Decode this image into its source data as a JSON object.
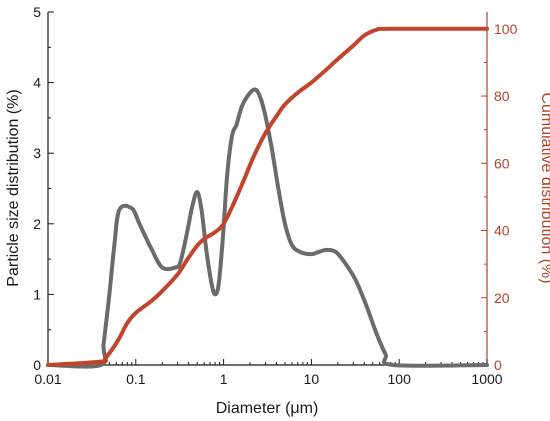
{
  "chart_data": {
    "type": "line",
    "xlabel": "Diameter (μm)",
    "ylabel_left": "Particle size distribution (%)",
    "ylabel_right": "Cumulative distribution (%)",
    "x_scale": "log",
    "xlim": [
      0.01,
      1000
    ],
    "ylim_left": [
      0,
      5
    ],
    "ylim_right": [
      0,
      105
    ],
    "x_ticks": [
      {
        "value": 0.01,
        "label": "0.01"
      },
      {
        "value": 0.1,
        "label": "0.1"
      },
      {
        "value": 1,
        "label": "1"
      },
      {
        "value": 10,
        "label": "10"
      },
      {
        "value": 100,
        "label": "100"
      },
      {
        "value": 1000,
        "label": "1000"
      }
    ],
    "y_ticks_left": [
      {
        "value": 0,
        "label": "0"
      },
      {
        "value": 1,
        "label": "1"
      },
      {
        "value": 2,
        "label": "2"
      },
      {
        "value": 3,
        "label": "3"
      },
      {
        "value": 4,
        "label": "4"
      },
      {
        "value": 5,
        "label": "5"
      }
    ],
    "y_ticks_right": [
      {
        "value": 0,
        "label": "0"
      },
      {
        "value": 20,
        "label": "20"
      },
      {
        "value": 40,
        "label": "40"
      },
      {
        "value": 60,
        "label": "60"
      },
      {
        "value": 80,
        "label": "80"
      },
      {
        "value": 100,
        "label": "100"
      }
    ],
    "grid": false,
    "colors": {
      "left_axis": "#1a1a1a",
      "right_axis": "#b2442a"
    },
    "series": [
      {
        "axis": "left",
        "color": "#6b6b6b",
        "points": [
          [
            0.01,
            0
          ],
          [
            0.04,
            0
          ],
          [
            0.043,
            0.3
          ],
          [
            0.05,
            1.0
          ],
          [
            0.057,
            1.7
          ],
          [
            0.065,
            2.2
          ],
          [
            0.09,
            2.22
          ],
          [
            0.11,
            2.0
          ],
          [
            0.15,
            1.65
          ],
          [
            0.2,
            1.38
          ],
          [
            0.28,
            1.38
          ],
          [
            0.32,
            1.45
          ],
          [
            0.38,
            1.85
          ],
          [
            0.44,
            2.25
          ],
          [
            0.5,
            2.45
          ],
          [
            0.56,
            2.2
          ],
          [
            0.64,
            1.6
          ],
          [
            0.73,
            1.15
          ],
          [
            0.8,
            1.0
          ],
          [
            0.88,
            1.15
          ],
          [
            0.98,
            1.8
          ],
          [
            1.1,
            2.7
          ],
          [
            1.25,
            3.25
          ],
          [
            1.4,
            3.4
          ],
          [
            1.6,
            3.65
          ],
          [
            1.85,
            3.8
          ],
          [
            2.2,
            3.9
          ],
          [
            2.5,
            3.85
          ],
          [
            2.9,
            3.6
          ],
          [
            3.5,
            3.1
          ],
          [
            4.2,
            2.5
          ],
          [
            5.0,
            2.0
          ],
          [
            6.0,
            1.7
          ],
          [
            7.5,
            1.6
          ],
          [
            10,
            1.57
          ],
          [
            12,
            1.6
          ],
          [
            15,
            1.63
          ],
          [
            19,
            1.6
          ],
          [
            24,
            1.45
          ],
          [
            32,
            1.2
          ],
          [
            42,
            0.85
          ],
          [
            55,
            0.45
          ],
          [
            70,
            0.15
          ],
          [
            85,
            0
          ],
          [
            1000,
            0
          ]
        ]
      },
      {
        "axis": "right",
        "color": "#c0452c",
        "points": [
          [
            0.01,
            0
          ],
          [
            0.04,
            1
          ],
          [
            0.045,
            2
          ],
          [
            0.055,
            5
          ],
          [
            0.065,
            8
          ],
          [
            0.08,
            12.5
          ],
          [
            0.1,
            15.5
          ],
          [
            0.15,
            19
          ],
          [
            0.2,
            22
          ],
          [
            0.3,
            27
          ],
          [
            0.4,
            32
          ],
          [
            0.5,
            35.5
          ],
          [
            0.6,
            37.5
          ],
          [
            0.8,
            39.5
          ],
          [
            1.0,
            42
          ],
          [
            1.3,
            48
          ],
          [
            1.7,
            55
          ],
          [
            2.2,
            62
          ],
          [
            3,
            69
          ],
          [
            4,
            74
          ],
          [
            5,
            77.5
          ],
          [
            7,
            81
          ],
          [
            10,
            84
          ],
          [
            15,
            88
          ],
          [
            20,
            91
          ],
          [
            30,
            95
          ],
          [
            40,
            98
          ],
          [
            55,
            99.7
          ],
          [
            80,
            100
          ],
          [
            1000,
            100
          ]
        ]
      }
    ]
  }
}
